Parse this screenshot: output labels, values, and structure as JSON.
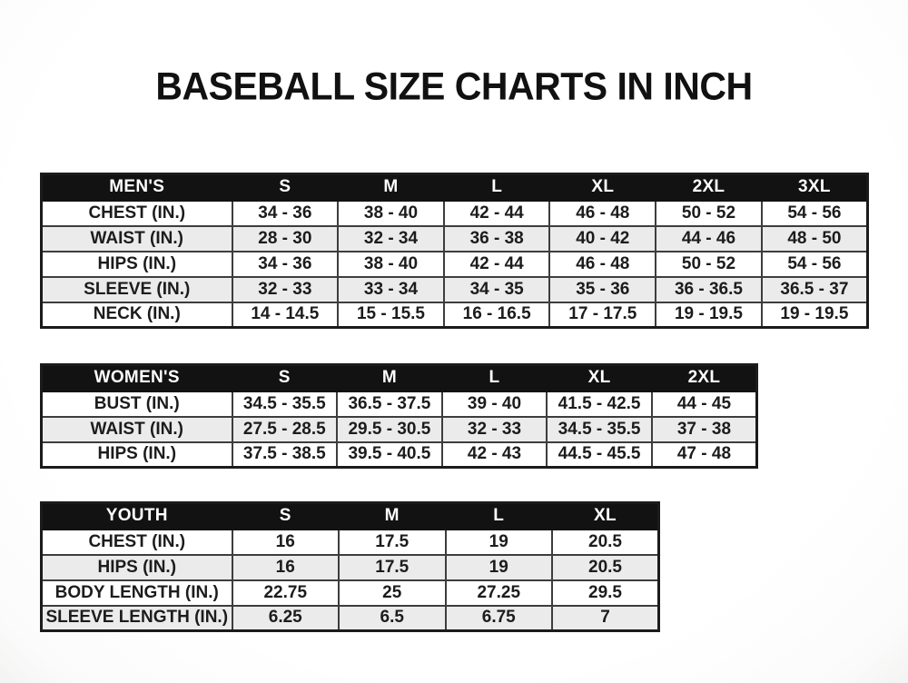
{
  "page": {
    "title": "BASEBALL SIZE CHARTS IN INCH"
  },
  "colors": {
    "header_bg": "#121212",
    "header_text": "#ffffff",
    "row_alt_bg": "#ebebeb",
    "border": "#3d3d3d",
    "text": "#1c1c1c"
  },
  "tables": [
    {
      "id": "mens",
      "group_label": "MEN'S",
      "sizes": [
        "S",
        "M",
        "L",
        "XL",
        "2XL",
        "3XL"
      ],
      "rows": [
        {
          "label": "CHEST (IN.)",
          "values": [
            "34 - 36",
            "38 - 40",
            "42 - 44",
            "46 - 48",
            "50 - 52",
            "54 - 56"
          ]
        },
        {
          "label": "WAIST (IN.)",
          "values": [
            "28 - 30",
            "32 - 34",
            "36 - 38",
            "40 - 42",
            "44 - 46",
            "48 - 50"
          ]
        },
        {
          "label": "HIPS (IN.)",
          "values": [
            "34 - 36",
            "38 - 40",
            "42 - 44",
            "46 - 48",
            "50 - 52",
            "54 - 56"
          ]
        },
        {
          "label": "SLEEVE (IN.)",
          "values": [
            "32 - 33",
            "33 - 34",
            "34 - 35",
            "35 - 36",
            "36 - 36.5",
            "36.5 - 37"
          ]
        },
        {
          "label": "NECK (IN.)",
          "values": [
            "14 - 14.5",
            "15 - 15.5",
            "16 - 16.5",
            "17 - 17.5",
            "19 - 19.5",
            "19 - 19.5"
          ]
        }
      ]
    },
    {
      "id": "womens",
      "group_label": "WOMEN'S",
      "sizes": [
        "S",
        "M",
        "L",
        "XL",
        "2XL"
      ],
      "rows": [
        {
          "label": "BUST (IN.)",
          "values": [
            "34.5 - 35.5",
            "36.5 - 37.5",
            "39 - 40",
            "41.5 - 42.5",
            "44 - 45"
          ]
        },
        {
          "label": "WAIST (IN.)",
          "values": [
            "27.5 - 28.5",
            "29.5 - 30.5",
            "32 - 33",
            "34.5 - 35.5",
            "37 - 38"
          ]
        },
        {
          "label": "HIPS (IN.)",
          "values": [
            "37.5 - 38.5",
            "39.5 - 40.5",
            "42 - 43",
            "44.5 - 45.5",
            "47 - 48"
          ]
        }
      ]
    },
    {
      "id": "youth",
      "group_label": "YOUTH",
      "sizes": [
        "S",
        "M",
        "L",
        "XL"
      ],
      "rows": [
        {
          "label": "CHEST (IN.)",
          "values": [
            "16",
            "17.5",
            "19",
            "20.5"
          ]
        },
        {
          "label": "HIPS (IN.)",
          "values": [
            "16",
            "17.5",
            "19",
            "20.5"
          ]
        },
        {
          "label": "BODY LENGTH (IN.)",
          "values": [
            "22.75",
            "25",
            "27.25",
            "29.5"
          ]
        },
        {
          "label": "SLEEVE LENGTH (IN.)",
          "values": [
            "6.25",
            "6.5",
            "6.75",
            "7"
          ]
        }
      ]
    }
  ]
}
